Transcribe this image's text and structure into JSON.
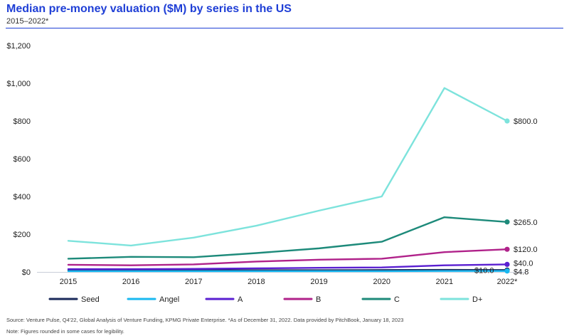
{
  "header": {
    "title": "Median pre-money valuation ($M) by series in the US",
    "subtitle": "2015–2022*"
  },
  "footnotes": {
    "source": "Source: Venture Pulse, Q4'22, Global Analysis of Venture Funding, KPMG Private Enterprise. *As of December 31, 2022. Data provided by PitchBook, January 18, 2023",
    "note": "Note: Figures rounded in some cases for legibility."
  },
  "chart_data": {
    "type": "line",
    "title": "Median pre-money valuation ($M) by series in the US",
    "subtitle": "2015–2022*",
    "xlabel": "",
    "ylabel": "",
    "categories": [
      "2015",
      "2016",
      "2017",
      "2018",
      "2019",
      "2020",
      "2021",
      "2022*"
    ],
    "ylim": [
      0,
      1200
    ],
    "yticks": [
      0,
      200,
      400,
      600,
      800,
      1000,
      1200
    ],
    "ytick_labels": [
      "$0",
      "$200",
      "$400",
      "$600",
      "$800",
      "$1,000",
      "$1,200"
    ],
    "grid": false,
    "legend_position": "bottom",
    "series": [
      {
        "name": "Seed",
        "color": "#1a2a5a",
        "values": [
          8,
          8,
          8,
          9,
          9,
          10,
          11,
          10
        ],
        "end_label": "$10.0"
      },
      {
        "name": "Angel",
        "color": "#19b8f0",
        "values": [
          4,
          4,
          4,
          4,
          4,
          4,
          5,
          4.8
        ],
        "end_label": "$4.8"
      },
      {
        "name": "A",
        "color": "#5a1fd1",
        "values": [
          15,
          15,
          16,
          19,
          22,
          24,
          35,
          40
        ],
        "end_label": "$40.0"
      },
      {
        "name": "B",
        "color": "#b0228a",
        "values": [
          38,
          35,
          40,
          55,
          65,
          70,
          105,
          120
        ],
        "end_label": "$120.0"
      },
      {
        "name": "C",
        "color": "#1d8a7a",
        "values": [
          70,
          80,
          78,
          100,
          125,
          160,
          290,
          265
        ],
        "end_label": "$265.0"
      },
      {
        "name": "D+",
        "color": "#7de3dc",
        "values": [
          165,
          140,
          182,
          245,
          325,
          400,
          975,
          800
        ],
        "end_label": "$800.0"
      }
    ]
  }
}
